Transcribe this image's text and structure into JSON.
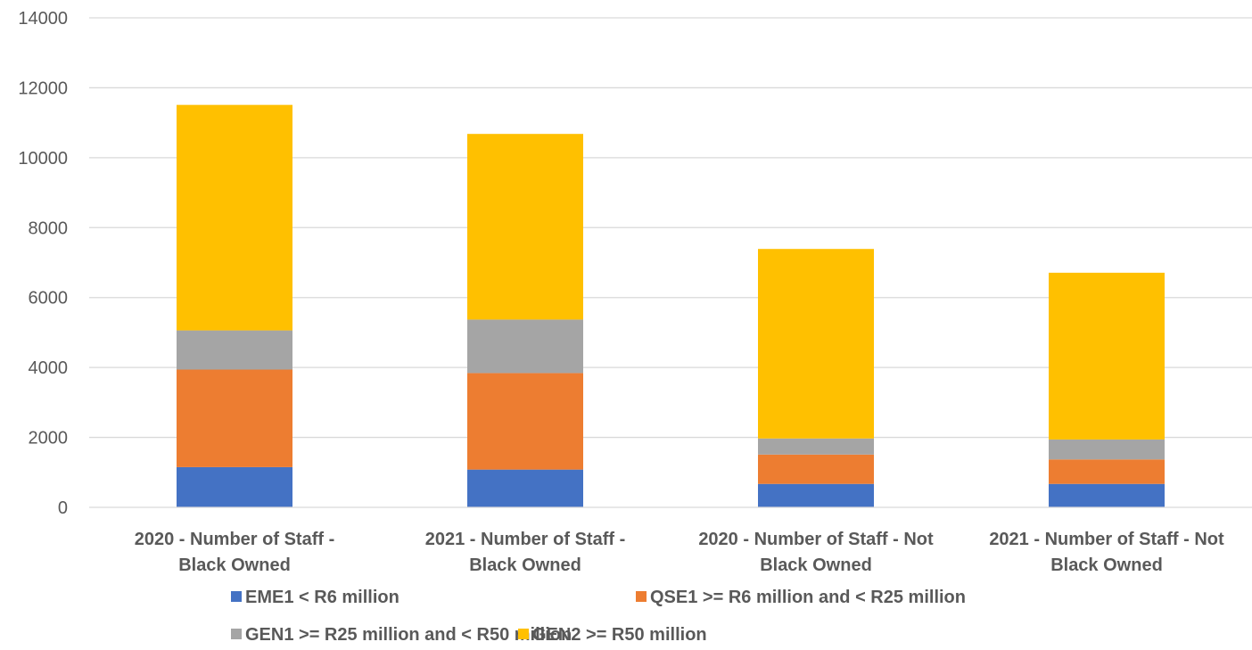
{
  "chart_data": {
    "type": "bar",
    "stacked": true,
    "title": "",
    "xlabel": "",
    "ylabel": "",
    "ylim": [
      0,
      14000
    ],
    "yticks": [
      0,
      2000,
      4000,
      6000,
      8000,
      10000,
      12000,
      14000
    ],
    "grid": true,
    "legend_position": "bottom",
    "categories": [
      [
        "2020 - Number of Staff -",
        "Black Owned"
      ],
      [
        "2021 - Number of Staff -",
        "Black Owned"
      ],
      [
        "2020 - Number of Staff - Not",
        "Black Owned"
      ],
      [
        "2021 - Number of Staff - Not",
        "Black Owned"
      ]
    ],
    "series": [
      {
        "name": "EME1 < R6 million",
        "color": "#4472c4",
        "values": [
          1150,
          1080,
          670,
          670
        ]
      },
      {
        "name": "QSE1 >= R6 million and < R25 million",
        "color": "#ed7d31",
        "values": [
          2790,
          2760,
          840,
          700
        ]
      },
      {
        "name": "GEN1 >= R25 million and < R50 million",
        "color": "#a5a5a5",
        "values": [
          1120,
          1530,
          460,
          570
        ]
      },
      {
        "name": "GEN2 >= R50 million",
        "color": "#ffc000",
        "values": [
          6450,
          5310,
          5420,
          4770
        ]
      }
    ]
  }
}
